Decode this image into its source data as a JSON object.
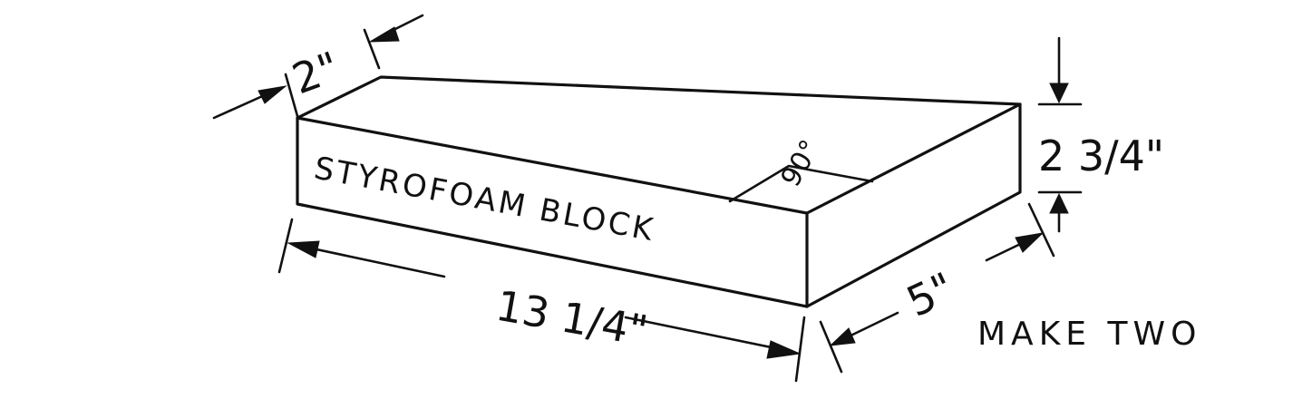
{
  "diagram": {
    "block_label": "STYROFOAM BLOCK",
    "angle_label": "90°",
    "dim_thickness": "2\"",
    "dim_length": "13 1/4\"",
    "dim_height": "2 3/4\"",
    "dim_width": "5\"",
    "note": "MAKE TWO",
    "ink_color": "#111111"
  }
}
